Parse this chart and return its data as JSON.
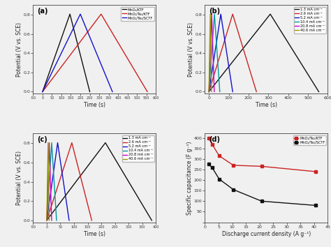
{
  "fig_bg": "#f0f0f0",
  "panel_a": {
    "label": "(a)",
    "xlabel": "Time (s)",
    "ylabel": "Potential (V vs. SCE)",
    "xlim": [
      -50,
      600
    ],
    "ylim": [
      -0.02,
      0.9
    ],
    "xticks": [
      -50,
      0,
      50,
      100,
      150,
      200,
      250,
      300,
      350,
      400,
      450,
      500,
      550,
      600
    ],
    "yticks": [
      0.0,
      0.2,
      0.4,
      0.6,
      0.8
    ],
    "curves": [
      {
        "label": "MnO₂/KTF",
        "color": "#111111",
        "x": [
          0,
          145,
          250
        ],
        "y": [
          0.0,
          0.805,
          0.0
        ]
      },
      {
        "label": "MnO₂/Te₂/KTF",
        "color": "#cc2222",
        "x": [
          0,
          310,
          555
        ],
        "y": [
          0.0,
          0.805,
          0.0
        ]
      },
      {
        "label": "MnO₂/Te₂/SCTF",
        "color": "#1111cc",
        "x": [
          0,
          200,
          370
        ],
        "y": [
          0.0,
          0.805,
          0.0
        ]
      }
    ]
  },
  "panel_b": {
    "label": "(b)",
    "xlabel": "Time (s)",
    "ylabel": "Potential (V vs. SCE)",
    "xlim": [
      -20,
      600
    ],
    "ylim": [
      -0.02,
      0.9
    ],
    "xticks": [
      0,
      100,
      200,
      300,
      400,
      500,
      600
    ],
    "yticks": [
      0.0,
      0.2,
      0.4,
      0.6,
      0.8
    ],
    "curves": [
      {
        "label": "1.3 mA cm⁻²",
        "color": "#111111",
        "x": [
          0,
          310,
          555
        ],
        "y": [
          0.0,
          0.805,
          0.0
        ]
      },
      {
        "label": "2.6 mA cm⁻²",
        "color": "#cc2222",
        "x": [
          0,
          120,
          240
        ],
        "y": [
          0.0,
          0.805,
          0.0
        ]
      },
      {
        "label": "5.2 mA cm⁻²",
        "color": "#1111cc",
        "x": [
          0,
          60,
          120
        ],
        "y": [
          0.0,
          0.805,
          0.0
        ]
      },
      {
        "label": "10.4 mA cm⁻²",
        "color": "#009999",
        "x": [
          0,
          28,
          55
        ],
        "y": [
          0.0,
          0.805,
          0.0
        ]
      },
      {
        "label": "20.8 mA cm⁻²",
        "color": "#cc00cc",
        "x": [
          0,
          14,
          27
        ],
        "y": [
          0.0,
          0.805,
          0.0
        ]
      },
      {
        "label": "40.6 mA cm⁻²",
        "color": "#999900",
        "x": [
          0,
          7,
          13
        ],
        "y": [
          0.0,
          0.805,
          0.0
        ]
      }
    ]
  },
  "panel_c": {
    "label": "(c)",
    "xlabel": "Time (s)",
    "ylabel": "Potential (V vs. SCE)",
    "xlim": [
      -50,
      400
    ],
    "ylim": [
      -0.02,
      0.9
    ],
    "xticks": [
      -50,
      0,
      50,
      100,
      150,
      200,
      250,
      300,
      350,
      400
    ],
    "yticks": [
      0.0,
      0.2,
      0.4,
      0.6,
      0.8
    ],
    "curves": [
      {
        "label": "1.3 mA cm⁻²",
        "color": "#111111",
        "x": [
          0,
          215,
          385
        ],
        "y": [
          0.0,
          0.805,
          0.0
        ]
      },
      {
        "label": "2.6 mA cm⁻²",
        "color": "#cc2222",
        "x": [
          0,
          92,
          165
        ],
        "y": [
          0.0,
          0.805,
          0.0
        ]
      },
      {
        "label": "5.2 mA cm⁻²",
        "color": "#1111cc",
        "x": [
          0,
          40,
          82
        ],
        "y": [
          0.0,
          0.805,
          0.0
        ]
      },
      {
        "label": "10.4 mA cm⁻²",
        "color": "#009999",
        "x": [
          0,
          18,
          36
        ],
        "y": [
          0.0,
          0.805,
          0.0
        ]
      },
      {
        "label": "20.8 mA cm⁻²",
        "color": "#cc00cc",
        "x": [
          0,
          9,
          18
        ],
        "y": [
          0.0,
          0.805,
          0.0
        ]
      },
      {
        "label": "40.6 mA cm⁻²",
        "color": "#999900",
        "x": [
          0,
          5,
          9
        ],
        "y": [
          0.0,
          0.805,
          0.0
        ]
      }
    ]
  },
  "panel_d": {
    "label": "(d)",
    "xlabel": "Discharge current density (A g⁻¹)",
    "ylabel": "Specific capacitance (F g⁻¹)",
    "xlim": [
      0,
      45
    ],
    "ylim": [
      0,
      420
    ],
    "xticks": [
      0,
      5,
      10,
      15,
      20,
      25,
      30,
      35,
      40,
      45
    ],
    "yticks": [
      0,
      50,
      100,
      150,
      200,
      250,
      300,
      350,
      400
    ],
    "curves": [
      {
        "label": "MnO₂/Te₂/KTF",
        "color": "#cc2222",
        "x": [
          1.3,
          2.6,
          5.2,
          10.4,
          20.8,
          40.6
        ],
        "y": [
          400,
          370,
          315,
          270,
          265,
          240
        ]
      },
      {
        "label": "MnO₂/Te₂/SCTF",
        "color": "#111111",
        "x": [
          1.3,
          2.6,
          5.2,
          10.4,
          20.8,
          40.6
        ],
        "y": [
          275,
          260,
          205,
          155,
          100,
          80
        ]
      }
    ]
  }
}
